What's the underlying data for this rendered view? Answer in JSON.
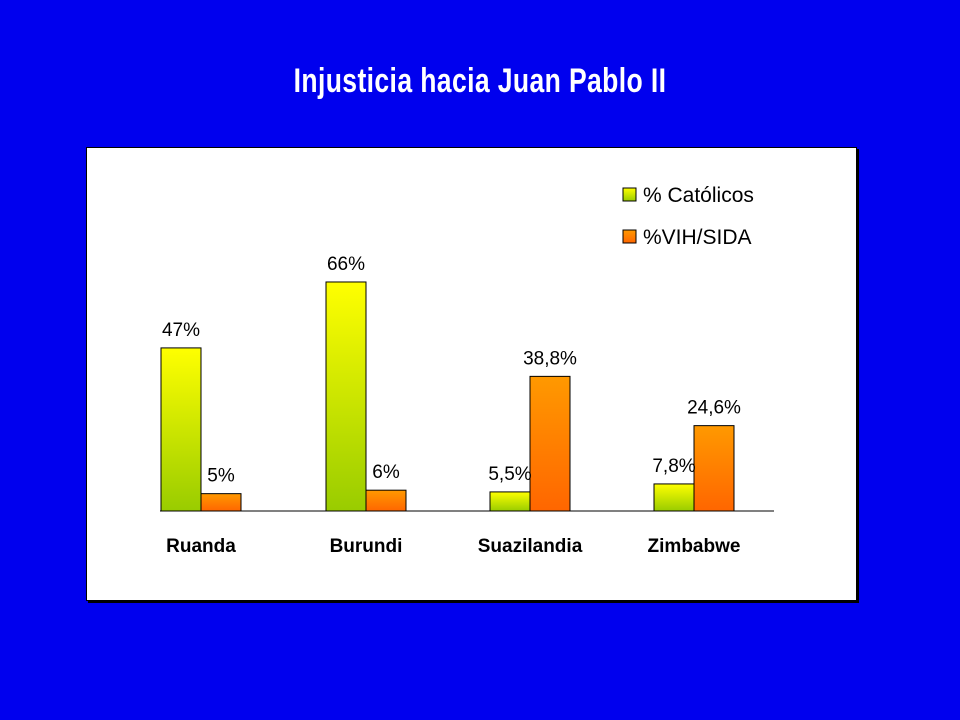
{
  "slide": {
    "title": "Injusticia hacia Juan Pablo II",
    "background": "#0000ee"
  },
  "chart_data": {
    "type": "bar",
    "title": "",
    "xlabel": "",
    "ylabel": "",
    "ylim": [
      0,
      70
    ],
    "grid": false,
    "legend_position": "top-right",
    "categories": [
      "Ruanda",
      "Burundi",
      "Suazilandia",
      "Zimbabwe"
    ],
    "series": [
      {
        "name": "% Católicos",
        "values": [
          47,
          66,
          5.5,
          7.8
        ],
        "labels": [
          "47%",
          "66%",
          "5,5%",
          "7,8%"
        ],
        "color_top": "#ffff00",
        "color_bottom": "#99cc00"
      },
      {
        "name": "%VIH/SIDA",
        "values": [
          5,
          6,
          38.8,
          24.6
        ],
        "labels": [
          "5%",
          "6%",
          "38,8%",
          "24,6%"
        ],
        "color_top": "#ff9900",
        "color_bottom": "#ff6600"
      }
    ]
  }
}
